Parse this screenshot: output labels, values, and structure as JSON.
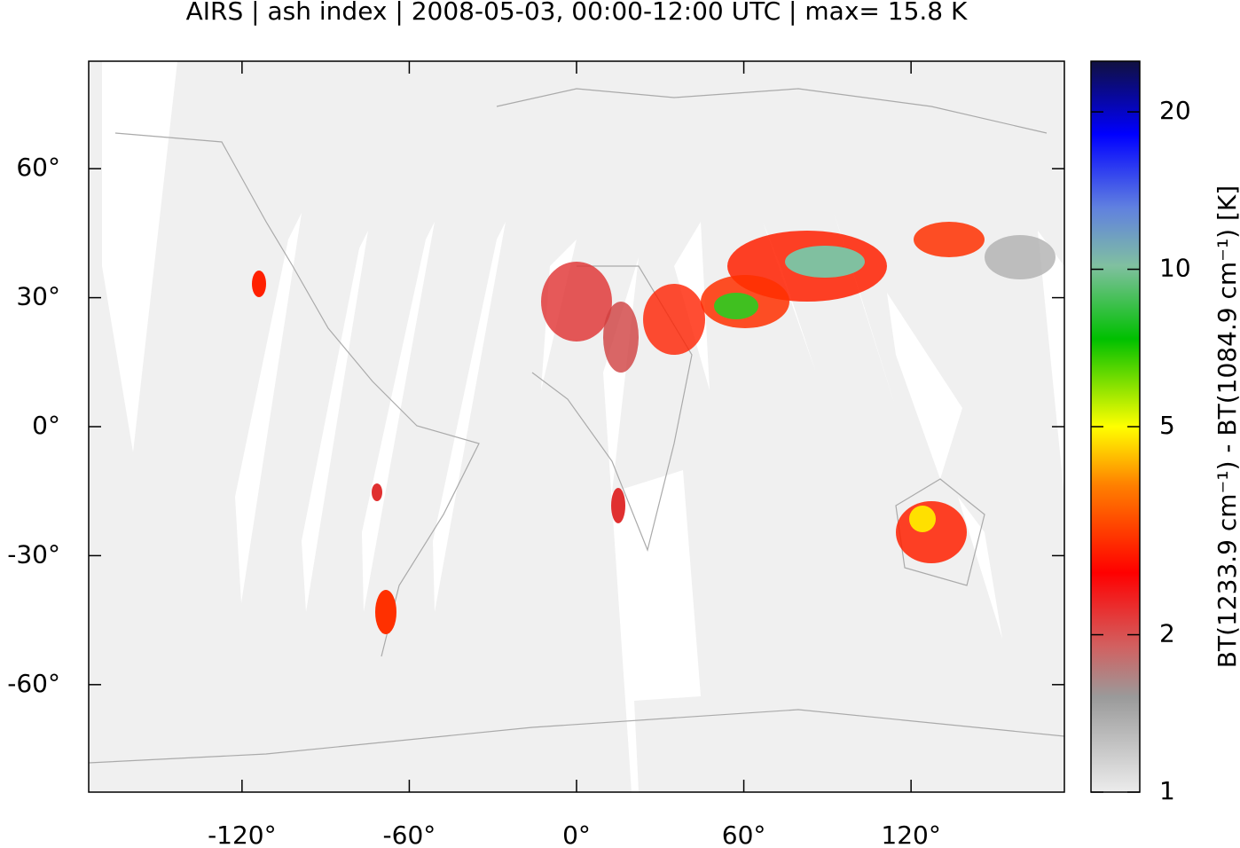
{
  "chart_data": {
    "type": "map",
    "title": "AIRS | ash index | 2008-05-03, 00:00-12:00 UTC | max= 15.8 K",
    "xlim": [
      -175,
      175
    ],
    "ylim": [
      -85,
      85
    ],
    "xticks": [
      {
        "value": -120,
        "label": "-120°"
      },
      {
        "value": -60,
        "label": "-60°"
      },
      {
        "value": 0,
        "label": "0°"
      },
      {
        "value": 60,
        "label": "60°"
      },
      {
        "value": 120,
        "label": "120°"
      }
    ],
    "yticks": [
      {
        "value": 60,
        "label": "60°"
      },
      {
        "value": 30,
        "label": "30°"
      },
      {
        "value": 0,
        "label": "0°"
      },
      {
        "value": -30,
        "label": "-30°"
      },
      {
        "value": -60,
        "label": "-60°"
      }
    ],
    "colorbar": {
      "label": "BT(1233.9 cm⁻¹) - BT(1084.9 cm⁻¹) [K]",
      "log_scale": true,
      "lim": [
        1,
        25
      ],
      "ticks": [
        1,
        2,
        5,
        10,
        20
      ]
    }
  }
}
